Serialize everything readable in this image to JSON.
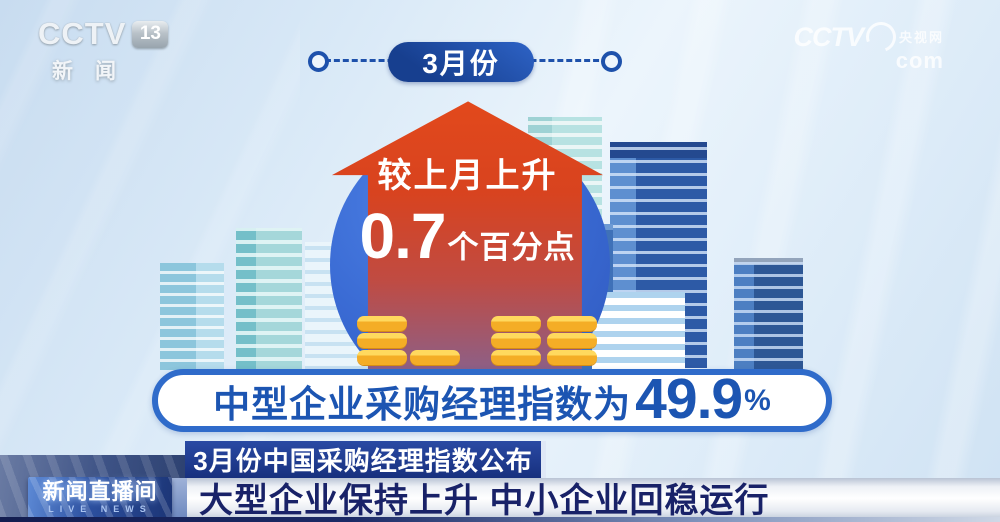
{
  "channel_logo": {
    "network": "CCTV",
    "channel_number": "13",
    "channel_name": "新闻"
  },
  "watermark": {
    "brand": "CCTV",
    "site_name": "央视网",
    "domain": "com"
  },
  "infographic": {
    "period_badge": "3月份",
    "arrow_callout": {
      "line1": "较上月上升",
      "value": "0.7",
      "unit": "个百分点"
    },
    "metric_banner": {
      "label": "中型企业采购经理指数为",
      "value": "49.9",
      "suffix": "%"
    }
  },
  "lower_third": {
    "topic_bar": "3月份中国采购经理指数公布",
    "program_badge": {
      "title": "新闻直播间",
      "subtitle": "LIVE NEWS"
    },
    "headline": "大型企业保持上升 中小企业回稳运行"
  },
  "colors": {
    "arrow_red": "#d8431f",
    "circle_blue": "#3a6bd4",
    "badge_blue": "#1e51ab",
    "banner_border": "#2f6bca",
    "banner_text": "#1c55b2",
    "coin_gold": "#f4ad26",
    "headline_navy": "#192268"
  }
}
